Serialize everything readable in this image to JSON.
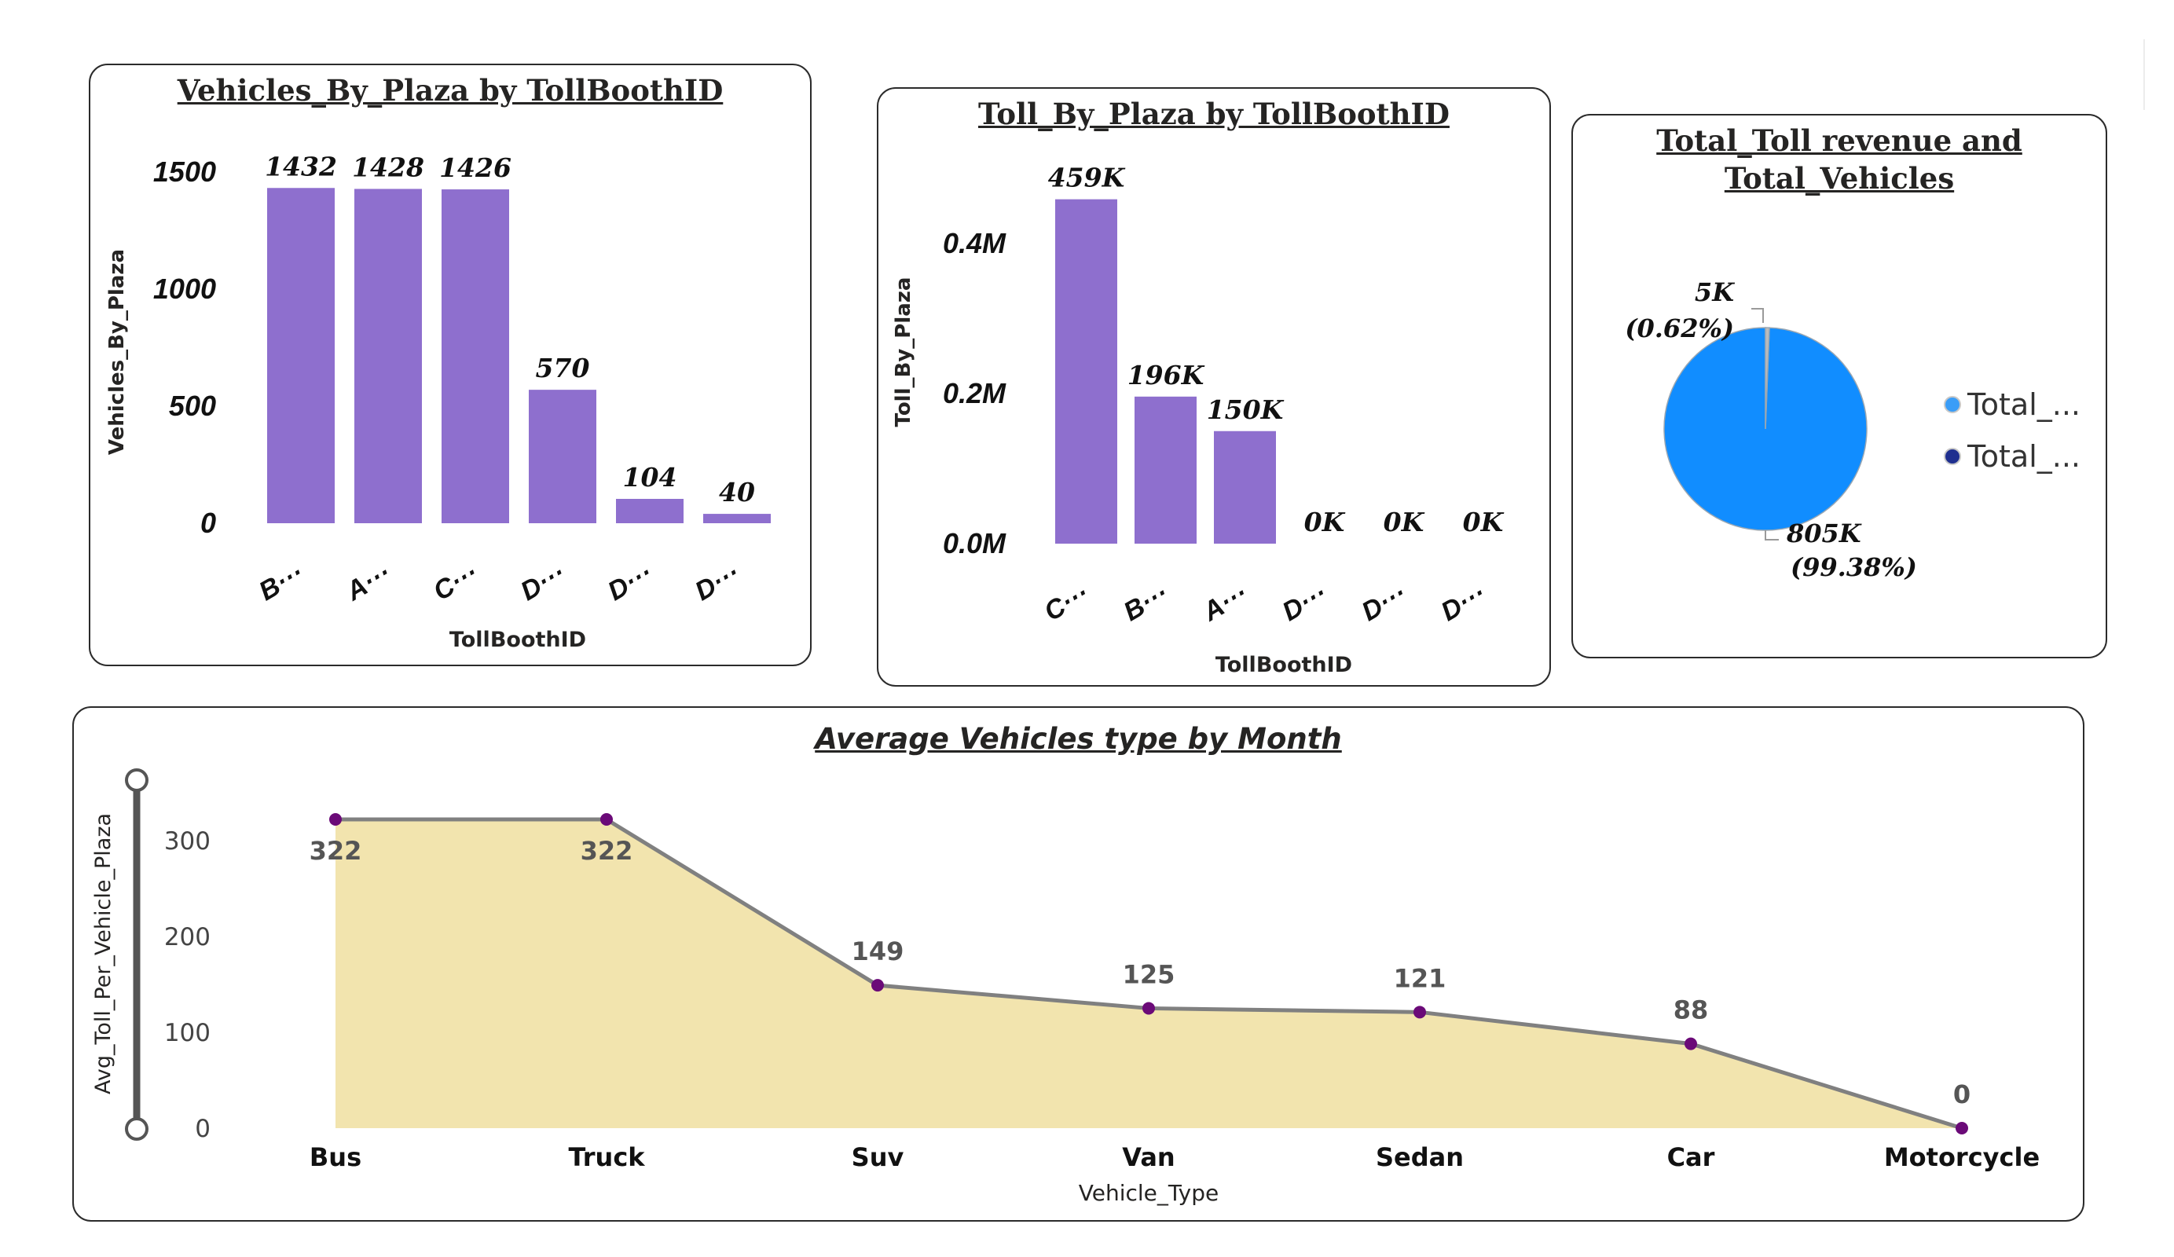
{
  "colors": {
    "bar": "#8e6fce",
    "pie_main": "#118dff",
    "pie_small": "#bcbcbc",
    "legend_dot_1": "#3a9df7",
    "legend_dot_2": "#1f2f8f",
    "area_fill": "#f2e4ae",
    "line": "#808080",
    "marker": "#6b0a78"
  },
  "chart_data": [
    {
      "type": "bar",
      "title": "Vehicles_By_Plaza by TollBoothID",
      "xlabel": "TollBoothID",
      "ylabel": "Vehicles_By_Plaza",
      "categories": [
        "B···",
        "A···",
        "C···",
        "D···",
        "D···",
        "D···"
      ],
      "values": [
        1432,
        1428,
        1426,
        570,
        104,
        40
      ],
      "data_labels": [
        "1432",
        "1428",
        "1426",
        "570",
        "104",
        "40"
      ],
      "yticks": [
        0,
        500,
        1000,
        1500
      ],
      "ytick_labels": [
        "0",
        "500",
        "1000",
        "1500"
      ],
      "ylim": [
        0,
        1500
      ]
    },
    {
      "type": "bar",
      "title": "Toll_By_Plaza by TollBoothID",
      "xlabel": "TollBoothID",
      "ylabel": "Toll_By_Plaza",
      "categories": [
        "C···",
        "B···",
        "A···",
        "D···",
        "D···",
        "D···"
      ],
      "values": [
        459000,
        196000,
        150000,
        0,
        0,
        0
      ],
      "data_labels": [
        "459K",
        "196K",
        "150K",
        "0K",
        "0K",
        "0K"
      ],
      "yticks": [
        0,
        200000,
        400000
      ],
      "ytick_labels": [
        "0.0M",
        "0.2M",
        "0.4M"
      ],
      "ylim": [
        0,
        400000
      ]
    },
    {
      "type": "pie",
      "title": "Total_Toll revenue and Total_Vehicles",
      "slices": [
        {
          "name": "Total_...",
          "value": 805000,
          "label": "805K",
          "pct_label": "(99.38%)"
        },
        {
          "name": "Total_...",
          "value": 5000,
          "label": "5K",
          "pct_label": "(0.62%)"
        }
      ],
      "legend": [
        "Total_...",
        "Total_..."
      ],
      "legend_position": "right"
    },
    {
      "type": "area",
      "title": "Average Vehicles type by Month",
      "xlabel": "Vehicle_Type",
      "ylabel": "Avg_Toll_Per_Vehicle_Plaza",
      "categories": [
        "Bus",
        "Truck",
        "Suv",
        "Van",
        "Sedan",
        "Car",
        "Motorcycle"
      ],
      "values": [
        322,
        322,
        149,
        125,
        121,
        88,
        0
      ],
      "data_labels": [
        "322",
        "322",
        "149",
        "125",
        "121",
        "88",
        "0"
      ],
      "yticks": [
        0,
        100,
        200,
        300
      ],
      "ytick_labels": [
        "0",
        "100",
        "200",
        "300"
      ],
      "ylim": [
        0,
        322
      ]
    }
  ]
}
